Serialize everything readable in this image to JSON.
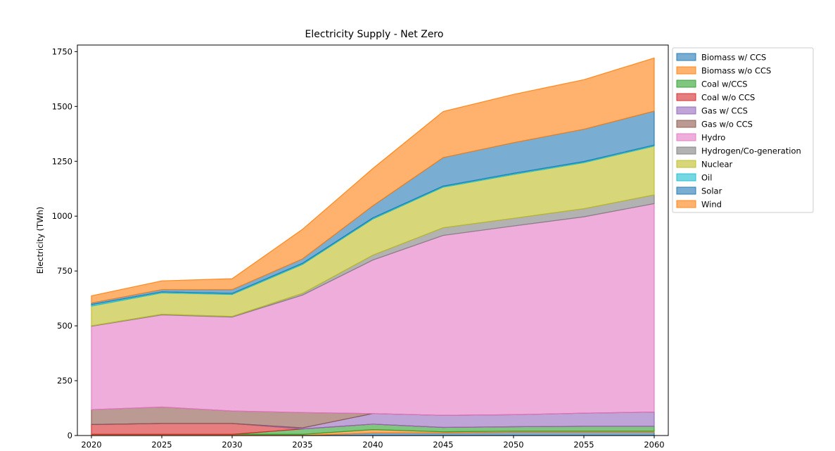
{
  "chart_data": {
    "type": "area",
    "stacked": true,
    "title": "Electricity Supply - Net Zero",
    "xlabel": "",
    "ylabel": "Electricity (TWh)",
    "x": [
      2020,
      2025,
      2030,
      2035,
      2040,
      2045,
      2050,
      2055,
      2060
    ],
    "xlim": [
      2019,
      2061
    ],
    "ylim": [
      0,
      1780
    ],
    "yticks": [
      0,
      250,
      500,
      750,
      1000,
      1250,
      1500,
      1750
    ],
    "grid": false,
    "legend_position": "outside-top-right",
    "series": [
      {
        "name": "Biomass w/ CCS",
        "color": "#1f77b4",
        "values": [
          0,
          0,
          0,
          0,
          12,
          12,
          15,
          15,
          15
        ]
      },
      {
        "name": "Biomass w/o CCS",
        "color": "#ff7f0e",
        "values": [
          5,
          5,
          5,
          5,
          15,
          5,
          5,
          5,
          5
        ]
      },
      {
        "name": "Coal w/CCS",
        "color": "#2ca02c",
        "values": [
          0,
          0,
          0,
          25,
          25,
          20,
          20,
          22,
          22
        ]
      },
      {
        "name": "Coal w/o CCS",
        "color": "#d62728",
        "values": [
          45,
          50,
          50,
          0,
          0,
          0,
          0,
          0,
          0
        ]
      },
      {
        "name": "Gas w/ CCS",
        "color": "#9467bd",
        "values": [
          0,
          0,
          0,
          5,
          48,
          55,
          55,
          60,
          65
        ]
      },
      {
        "name": "Gas w/o CCS",
        "color": "#8c564b",
        "values": [
          68,
          75,
          57,
          70,
          0,
          0,
          0,
          0,
          0
        ]
      },
      {
        "name": "Hydro",
        "color": "#e377c2",
        "values": [
          380,
          420,
          428,
          535,
          700,
          820,
          860,
          895,
          950
        ]
      },
      {
        "name": "Hydrogen/Co-generation",
        "color": "#7f7f7f",
        "values": [
          2,
          3,
          3,
          8,
          22,
          35,
          35,
          37,
          40
        ]
      },
      {
        "name": "Nuclear",
        "color": "#bcbd22",
        "values": [
          90,
          97,
          100,
          132,
          165,
          185,
          200,
          210,
          222
        ]
      },
      {
        "name": "Oil",
        "color": "#17becf",
        "values": [
          7,
          5,
          5,
          5,
          5,
          5,
          5,
          5,
          5
        ]
      },
      {
        "name": "Solar",
        "color": "#1f77b4",
        "values": [
          7,
          10,
          17,
          20,
          55,
          130,
          140,
          147,
          155
        ]
      },
      {
        "name": "Wind",
        "color": "#ff7f0e",
        "values": [
          33,
          40,
          50,
          135,
          170,
          210,
          220,
          226,
          242
        ]
      }
    ]
  }
}
